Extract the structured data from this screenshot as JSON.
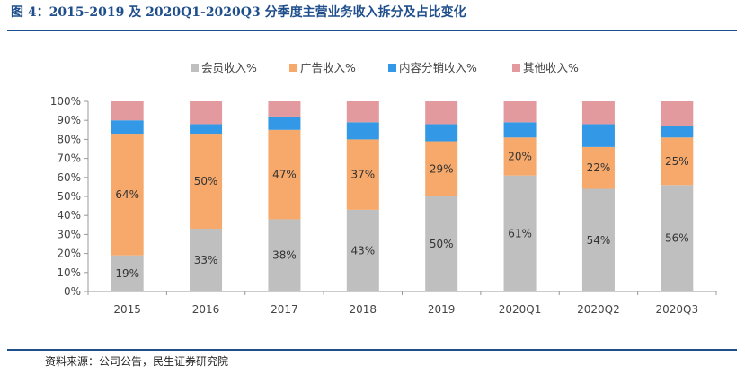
{
  "figure": {
    "title": "图 4：2015-2019 及 2020Q1-2020Q3 分季度主营业务收入拆分及占比变化",
    "source": "资料来源：公司公告，民生证券研究院"
  },
  "chart_data": {
    "type": "bar",
    "stacked": true,
    "percent": true,
    "categories": [
      "2015",
      "2016",
      "2017",
      "2018",
      "2019",
      "2020Q1",
      "2020Q2",
      "2020Q3"
    ],
    "ylim": [
      0,
      100
    ],
    "yticks": [
      "0%",
      "10%",
      "20%",
      "30%",
      "40%",
      "50%",
      "60%",
      "70%",
      "80%",
      "90%",
      "100%"
    ],
    "legend_position": "top",
    "grid": false,
    "series": [
      {
        "name": "会员收入%",
        "color": "#bfbfbf",
        "values": [
          19,
          33,
          38,
          43,
          50,
          61,
          54,
          56
        ],
        "labels": [
          "19%",
          "33%",
          "38%",
          "43%",
          "50%",
          "61%",
          "54%",
          "56%"
        ]
      },
      {
        "name": "广告收入%",
        "color": "#f6a96b",
        "values": [
          64,
          50,
          47,
          37,
          29,
          20,
          22,
          25
        ],
        "labels": [
          "64%",
          "50%",
          "47%",
          "37%",
          "29%",
          "20%",
          "22%",
          "25%"
        ]
      },
      {
        "name": "内容分销收入%",
        "color": "#3399e6",
        "values": [
          7,
          5,
          7,
          9,
          9,
          8,
          12,
          6
        ],
        "labels": null
      },
      {
        "name": "其他收入%",
        "color": "#e39a9f",
        "values": [
          10,
          12,
          8,
          11,
          12,
          11,
          12,
          13
        ],
        "labels": null
      }
    ]
  }
}
